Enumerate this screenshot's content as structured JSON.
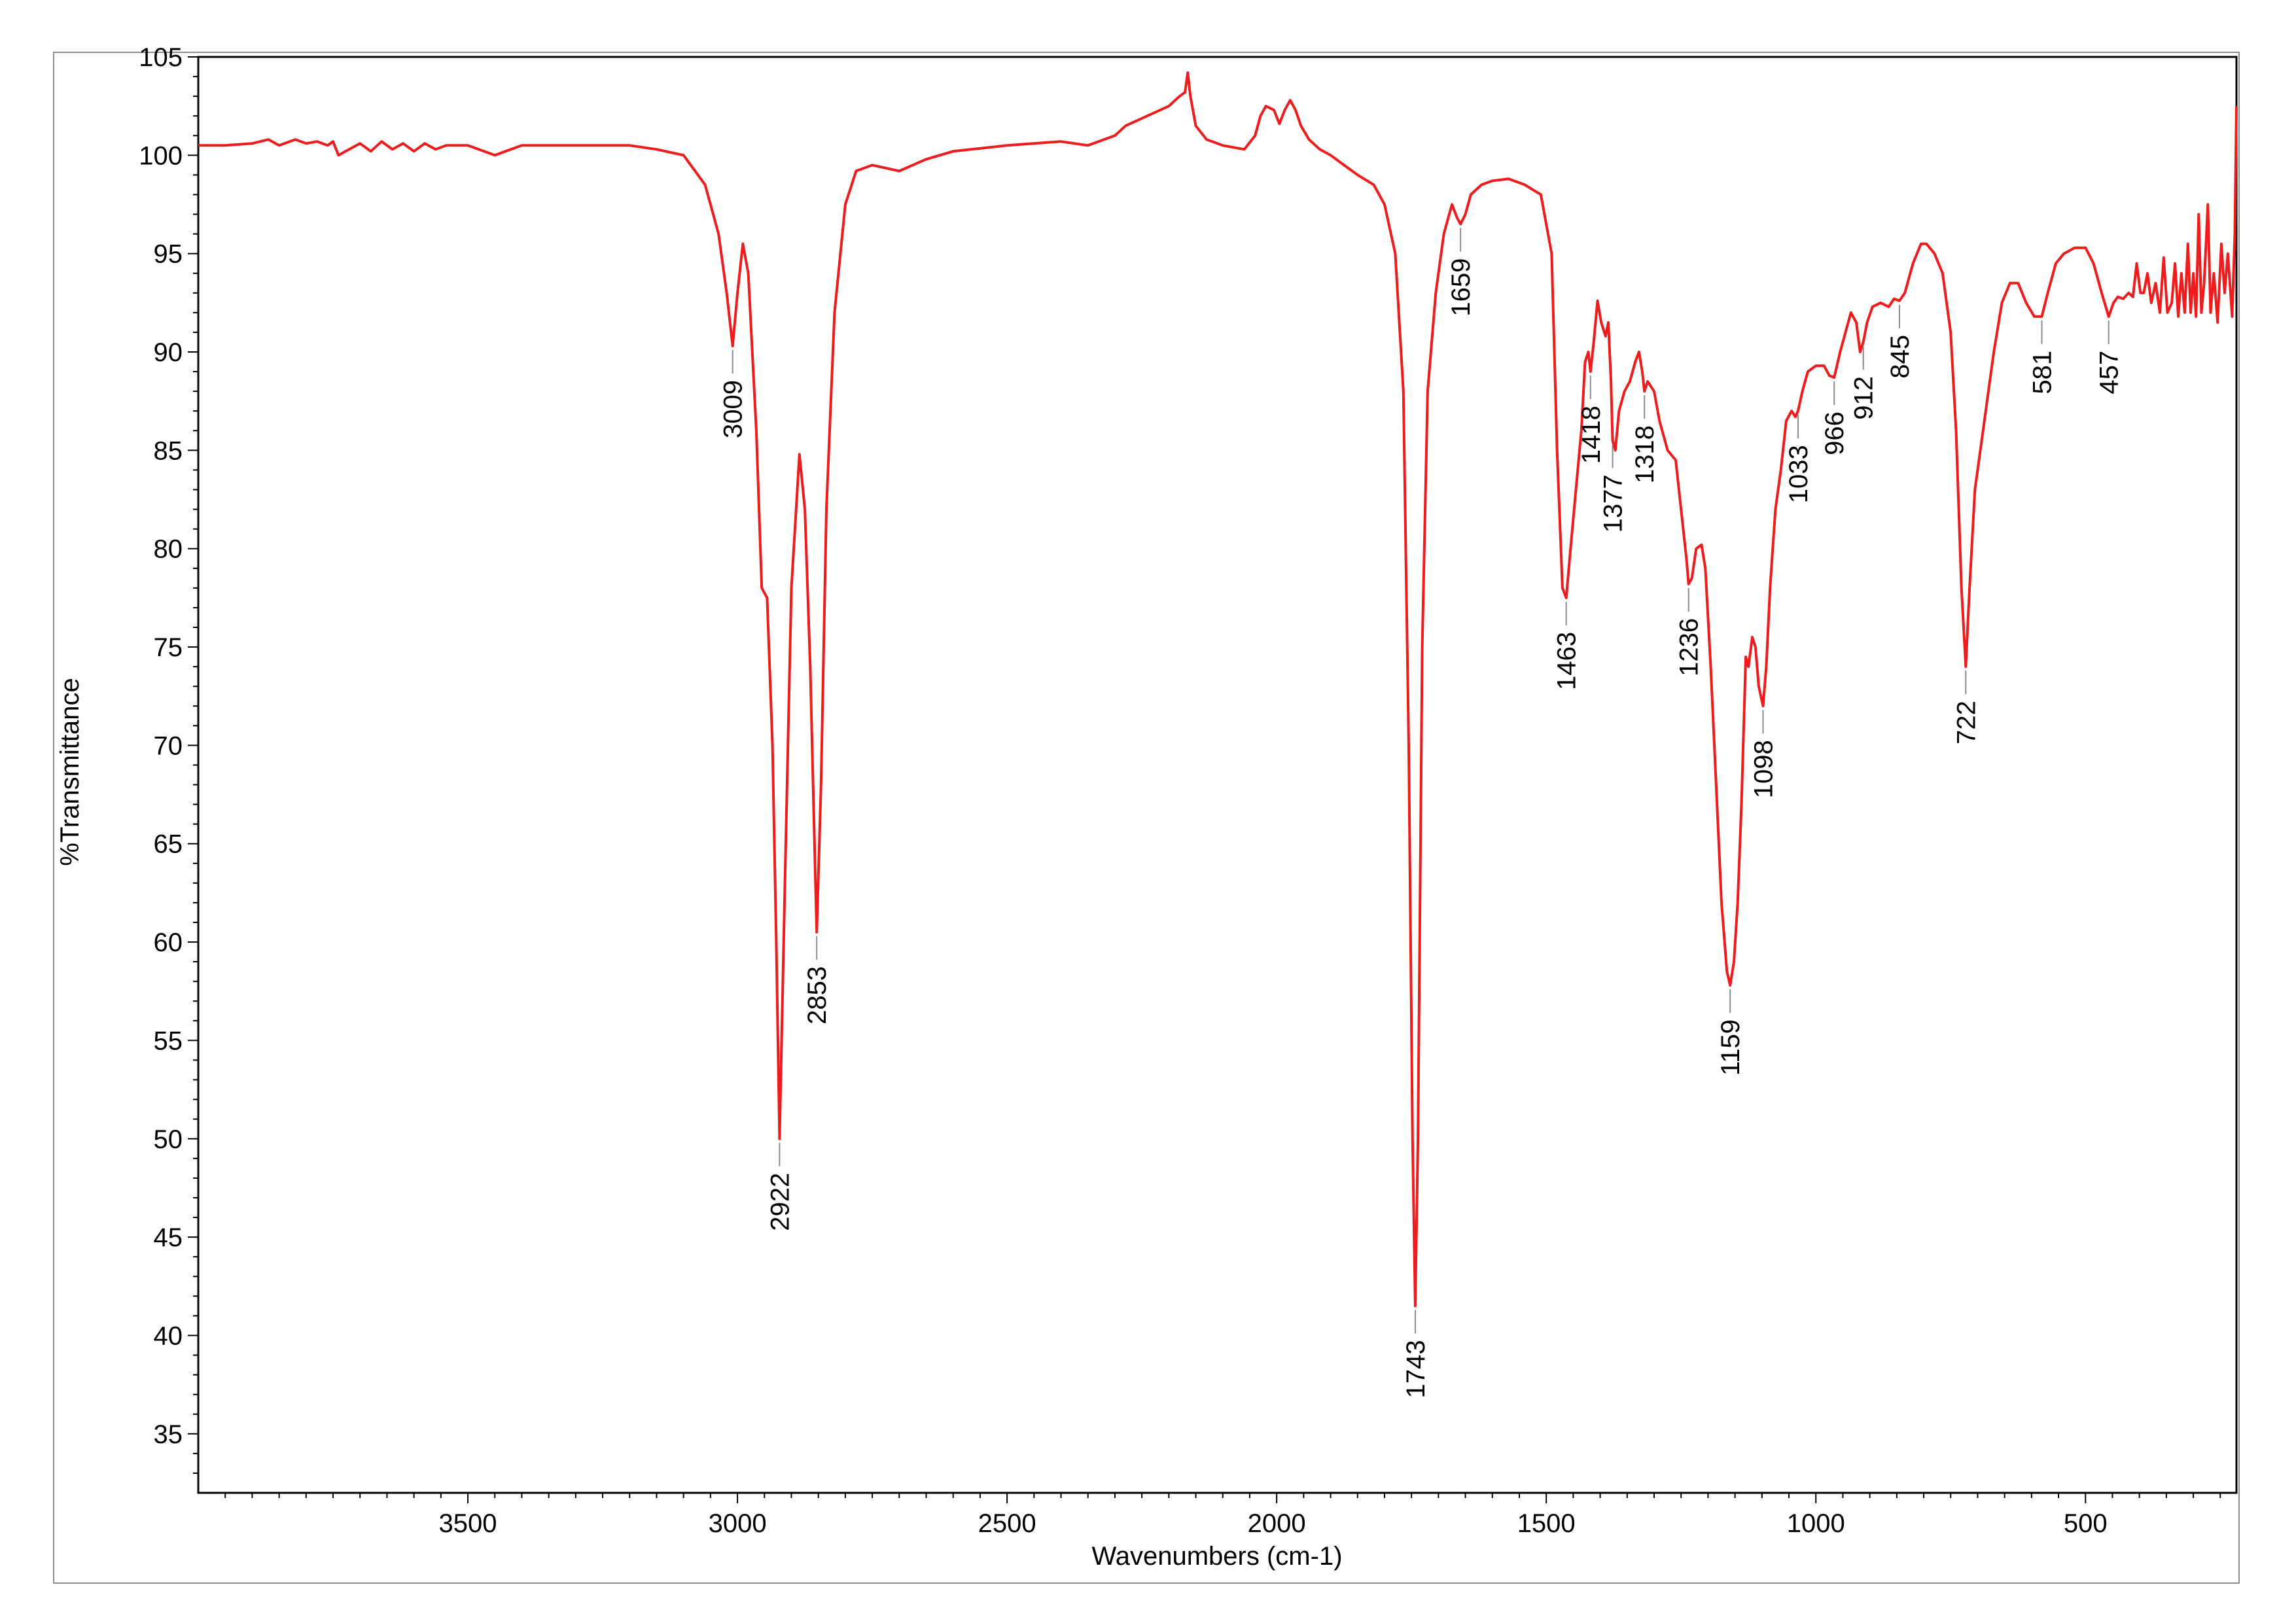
{
  "chart_data": {
    "type": "line",
    "xlabel": "Wavenumbers (cm-1)",
    "ylabel": "%Transmittance",
    "xlim": [
      4000,
      220
    ],
    "ylim": [
      32,
      105
    ],
    "x_reversed": true,
    "grid": false,
    "x_ticks": [
      3500,
      3000,
      2500,
      2000,
      1500,
      1000,
      500
    ],
    "y_ticks": [
      35,
      40,
      45,
      50,
      55,
      60,
      65,
      70,
      75,
      80,
      85,
      90,
      95,
      100,
      105
    ],
    "series": [
      {
        "color": "#ee1c1c",
        "points": [
          [
            4000,
            100.5
          ],
          [
            3950,
            100.5
          ],
          [
            3900,
            100.6
          ],
          [
            3870,
            100.8
          ],
          [
            3850,
            100.5
          ],
          [
            3820,
            100.8
          ],
          [
            3800,
            100.6
          ],
          [
            3780,
            100.7
          ],
          [
            3760,
            100.5
          ],
          [
            3750,
            100.7
          ],
          [
            3740,
            100.0
          ],
          [
            3720,
            100.3
          ],
          [
            3700,
            100.6
          ],
          [
            3680,
            100.2
          ],
          [
            3660,
            100.7
          ],
          [
            3640,
            100.3
          ],
          [
            3620,
            100.6
          ],
          [
            3600,
            100.2
          ],
          [
            3580,
            100.6
          ],
          [
            3560,
            100.3
          ],
          [
            3540,
            100.5
          ],
          [
            3500,
            100.5
          ],
          [
            3450,
            100.0
          ],
          [
            3400,
            100.5
          ],
          [
            3300,
            100.5
          ],
          [
            3200,
            100.5
          ],
          [
            3150,
            100.3
          ],
          [
            3100,
            100.0
          ],
          [
            3060,
            98.5
          ],
          [
            3035,
            96.0
          ],
          [
            3020,
            93.0
          ],
          [
            3009,
            90.3
          ],
          [
            3000,
            93.0
          ],
          [
            2990,
            95.5
          ],
          [
            2980,
            94.0
          ],
          [
            2965,
            86.0
          ],
          [
            2955,
            78.0
          ],
          [
            2945,
            77.5
          ],
          [
            2935,
            70.0
          ],
          [
            2928,
            60.0
          ],
          [
            2922,
            50.0
          ],
          [
            2912,
            63.0
          ],
          [
            2900,
            78.0
          ],
          [
            2885,
            84.8
          ],
          [
            2875,
            82.0
          ],
          [
            2865,
            74.0
          ],
          [
            2858,
            66.0
          ],
          [
            2853,
            60.5
          ],
          [
            2845,
            68.0
          ],
          [
            2835,
            82.0
          ],
          [
            2820,
            92.0
          ],
          [
            2800,
            97.5
          ],
          [
            2780,
            99.2
          ],
          [
            2750,
            99.5
          ],
          [
            2700,
            99.2
          ],
          [
            2650,
            99.8
          ],
          [
            2600,
            100.2
          ],
          [
            2500,
            100.5
          ],
          [
            2400,
            100.7
          ],
          [
            2350,
            100.5
          ],
          [
            2300,
            101.0
          ],
          [
            2280,
            101.5
          ],
          [
            2240,
            102.0
          ],
          [
            2200,
            102.5
          ],
          [
            2180,
            103.0
          ],
          [
            2170,
            103.2
          ],
          [
            2165,
            104.2
          ],
          [
            2160,
            103.0
          ],
          [
            2150,
            101.5
          ],
          [
            2130,
            100.8
          ],
          [
            2100,
            100.5
          ],
          [
            2060,
            100.3
          ],
          [
            2040,
            101.0
          ],
          [
            2030,
            102.0
          ],
          [
            2020,
            102.5
          ],
          [
            2005,
            102.3
          ],
          [
            1995,
            101.6
          ],
          [
            1985,
            102.3
          ],
          [
            1975,
            102.8
          ],
          [
            1965,
            102.3
          ],
          [
            1955,
            101.5
          ],
          [
            1940,
            100.8
          ],
          [
            1920,
            100.3
          ],
          [
            1900,
            100.0
          ],
          [
            1880,
            99.6
          ],
          [
            1850,
            99.0
          ],
          [
            1820,
            98.5
          ],
          [
            1800,
            97.5
          ],
          [
            1780,
            95.0
          ],
          [
            1765,
            88.0
          ],
          [
            1755,
            70.0
          ],
          [
            1748,
            50.0
          ],
          [
            1743,
            41.5
          ],
          [
            1738,
            50.0
          ],
          [
            1730,
            75.0
          ],
          [
            1720,
            88.0
          ],
          [
            1705,
            93.0
          ],
          [
            1690,
            96.0
          ],
          [
            1675,
            97.5
          ],
          [
            1665,
            96.8
          ],
          [
            1659,
            96.5
          ],
          [
            1650,
            97.0
          ],
          [
            1640,
            98.0
          ],
          [
            1620,
            98.5
          ],
          [
            1600,
            98.7
          ],
          [
            1570,
            98.8
          ],
          [
            1540,
            98.5
          ],
          [
            1510,
            98.0
          ],
          [
            1490,
            95.0
          ],
          [
            1480,
            85.0
          ],
          [
            1470,
            78.0
          ],
          [
            1463,
            77.5
          ],
          [
            1455,
            80.0
          ],
          [
            1445,
            83.0
          ],
          [
            1435,
            86.0
          ],
          [
            1428,
            89.5
          ],
          [
            1422,
            90.0
          ],
          [
            1418,
            89.0
          ],
          [
            1412,
            90.5
          ],
          [
            1405,
            92.6
          ],
          [
            1398,
            91.5
          ],
          [
            1390,
            90.8
          ],
          [
            1385,
            91.5
          ],
          [
            1380,
            88.5
          ],
          [
            1377,
            85.5
          ],
          [
            1372,
            85.0
          ],
          [
            1365,
            87.0
          ],
          [
            1355,
            88.0
          ],
          [
            1345,
            88.5
          ],
          [
            1335,
            89.5
          ],
          [
            1328,
            90.0
          ],
          [
            1322,
            89.0
          ],
          [
            1318,
            88.0
          ],
          [
            1312,
            88.5
          ],
          [
            1300,
            88.0
          ],
          [
            1290,
            86.5
          ],
          [
            1275,
            85.0
          ],
          [
            1260,
            84.5
          ],
          [
            1250,
            82.0
          ],
          [
            1240,
            79.5
          ],
          [
            1236,
            78.2
          ],
          [
            1230,
            78.5
          ],
          [
            1222,
            80.0
          ],
          [
            1212,
            80.2
          ],
          [
            1205,
            79.0
          ],
          [
            1195,
            74.0
          ],
          [
            1185,
            68.0
          ],
          [
            1175,
            62.0
          ],
          [
            1165,
            58.5
          ],
          [
            1159,
            57.8
          ],
          [
            1152,
            59.0
          ],
          [
            1145,
            62.0
          ],
          [
            1138,
            67.0
          ],
          [
            1130,
            74.5
          ],
          [
            1125,
            74.0
          ],
          [
            1118,
            75.5
          ],
          [
            1112,
            75.0
          ],
          [
            1106,
            73.0
          ],
          [
            1098,
            72.0
          ],
          [
            1092,
            74.0
          ],
          [
            1085,
            78.0
          ],
          [
            1075,
            82.0
          ],
          [
            1065,
            84.0
          ],
          [
            1055,
            86.5
          ],
          [
            1045,
            87.0
          ],
          [
            1038,
            86.7
          ],
          [
            1033,
            87.0
          ],
          [
            1025,
            88.0
          ],
          [
            1015,
            89.0
          ],
          [
            1000,
            89.3
          ],
          [
            985,
            89.3
          ],
          [
            975,
            88.8
          ],
          [
            966,
            88.7
          ],
          [
            955,
            90.0
          ],
          [
            945,
            91.0
          ],
          [
            935,
            92.0
          ],
          [
            925,
            91.5
          ],
          [
            918,
            90.0
          ],
          [
            912,
            90.5
          ],
          [
            905,
            91.5
          ],
          [
            895,
            92.3
          ],
          [
            880,
            92.5
          ],
          [
            865,
            92.3
          ],
          [
            855,
            92.7
          ],
          [
            845,
            92.6
          ],
          [
            835,
            93.0
          ],
          [
            820,
            94.5
          ],
          [
            805,
            95.5
          ],
          [
            795,
            95.5
          ],
          [
            780,
            95.0
          ],
          [
            765,
            94.0
          ],
          [
            750,
            91.0
          ],
          [
            740,
            86.0
          ],
          [
            730,
            78.0
          ],
          [
            722,
            74.0
          ],
          [
            715,
            78.0
          ],
          [
            705,
            83.0
          ],
          [
            690,
            86.0
          ],
          [
            680,
            88.0
          ],
          [
            670,
            90.0
          ],
          [
            655,
            92.5
          ],
          [
            640,
            93.5
          ],
          [
            625,
            93.5
          ],
          [
            610,
            92.5
          ],
          [
            595,
            91.8
          ],
          [
            581,
            91.8
          ],
          [
            570,
            93.0
          ],
          [
            555,
            94.5
          ],
          [
            540,
            95.0
          ],
          [
            520,
            95.3
          ],
          [
            500,
            95.3
          ],
          [
            485,
            94.5
          ],
          [
            470,
            93.0
          ],
          [
            457,
            91.8
          ],
          [
            448,
            92.5
          ],
          [
            440,
            92.8
          ],
          [
            430,
            92.7
          ],
          [
            420,
            93.0
          ],
          [
            412,
            92.8
          ],
          [
            405,
            94.5
          ],
          [
            398,
            93.0
          ],
          [
            392,
            93.0
          ],
          [
            385,
            94.0
          ],
          [
            378,
            92.5
          ],
          [
            370,
            93.5
          ],
          [
            362,
            92.0
          ],
          [
            355,
            94.8
          ],
          [
            348,
            92.0
          ],
          [
            340,
            92.5
          ],
          [
            334,
            94.5
          ],
          [
            328,
            91.8
          ],
          [
            322,
            94.0
          ],
          [
            316,
            92.0
          ],
          [
            310,
            95.5
          ],
          [
            305,
            92.0
          ],
          [
            300,
            94.0
          ],
          [
            295,
            91.8
          ],
          [
            290,
            97.0
          ],
          [
            285,
            92.0
          ],
          [
            280,
            93.5
          ],
          [
            273,
            97.5
          ],
          [
            268,
            92.0
          ],
          [
            262,
            94.0
          ],
          [
            255,
            91.5
          ],
          [
            248,
            95.5
          ],
          [
            242,
            93.0
          ],
          [
            236,
            95.0
          ],
          [
            228,
            91.8
          ],
          [
            223,
            96.0
          ],
          [
            220,
            102.5
          ]
        ]
      }
    ],
    "annotations": [
      {
        "label": "3009",
        "x": 3009,
        "y": 90.3
      },
      {
        "label": "2922",
        "x": 2922,
        "y": 50.0
      },
      {
        "label": "2853",
        "x": 2853,
        "y": 60.5
      },
      {
        "label": "1743",
        "x": 1743,
        "y": 41.5
      },
      {
        "label": "1659",
        "x": 1659,
        "y": 96.5
      },
      {
        "label": "1463",
        "x": 1463,
        "y": 77.5
      },
      {
        "label": "1418",
        "x": 1418,
        "y": 89.0
      },
      {
        "label": "1377",
        "x": 1377,
        "y": 85.5
      },
      {
        "label": "1318",
        "x": 1318,
        "y": 88.0
      },
      {
        "label": "1236",
        "x": 1236,
        "y": 78.2
      },
      {
        "label": "1159",
        "x": 1159,
        "y": 57.8
      },
      {
        "label": "1098",
        "x": 1098,
        "y": 72.0
      },
      {
        "label": "1033",
        "x": 1033,
        "y": 87.0
      },
      {
        "label": "966",
        "x": 966,
        "y": 88.7
      },
      {
        "label": "912",
        "x": 912,
        "y": 90.5
      },
      {
        "label": "845",
        "x": 845,
        "y": 92.6
      },
      {
        "label": "722",
        "x": 722,
        "y": 74.0
      },
      {
        "label": "581",
        "x": 581,
        "y": 91.8
      },
      {
        "label": "457",
        "x": 457,
        "y": 91.8
      }
    ]
  }
}
